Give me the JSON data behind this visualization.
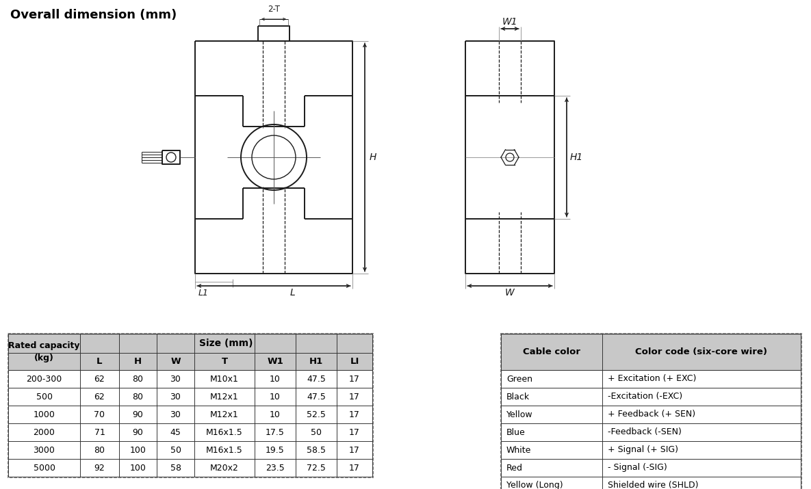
{
  "title": "Overall dimension (mm)",
  "table1_headers": [
    "Rated capacity\n(kg)",
    "L",
    "H",
    "W",
    "T",
    "W1",
    "H1",
    "LI"
  ],
  "table1_subheader": "Size (mm)",
  "table1_data": [
    [
      "200-300",
      "62",
      "80",
      "30",
      "M10x1",
      "10",
      "47.5",
      "17"
    ],
    [
      "500",
      "62",
      "80",
      "30",
      "M12x1",
      "10",
      "47.5",
      "17"
    ],
    [
      "1000",
      "70",
      "90",
      "30",
      "M12x1",
      "10",
      "52.5",
      "17"
    ],
    [
      "2000",
      "71",
      "90",
      "45",
      "M16x1.5",
      "17.5",
      "50",
      "17"
    ],
    [
      "3000",
      "80",
      "100",
      "50",
      "M16x1.5",
      "19.5",
      "58.5",
      "17"
    ],
    [
      "5000",
      "92",
      "100",
      "58",
      "M20x2",
      "23.5",
      "72.5",
      "17"
    ]
  ],
  "table2_headers": [
    "Cable color",
    "Color code (six-core wire)"
  ],
  "table2_data": [
    [
      "Green",
      "+ Excitation (+ EXC)"
    ],
    [
      "Black",
      "-Excitation (-EXC)"
    ],
    [
      "Yellow",
      "+ Feedback (+ SEN)"
    ],
    [
      "Blue",
      "-Feedback (-SEN)"
    ],
    [
      "White",
      "+ Signal (+ SIG)"
    ],
    [
      "Red",
      "- Signal (-SIG)"
    ],
    [
      "Yellow (Long)",
      "Shielded wire (SHLD)"
    ]
  ],
  "header_bg": "#c8c8c8",
  "line_color": "#1a1a1a",
  "bg_color": "#ffffff"
}
